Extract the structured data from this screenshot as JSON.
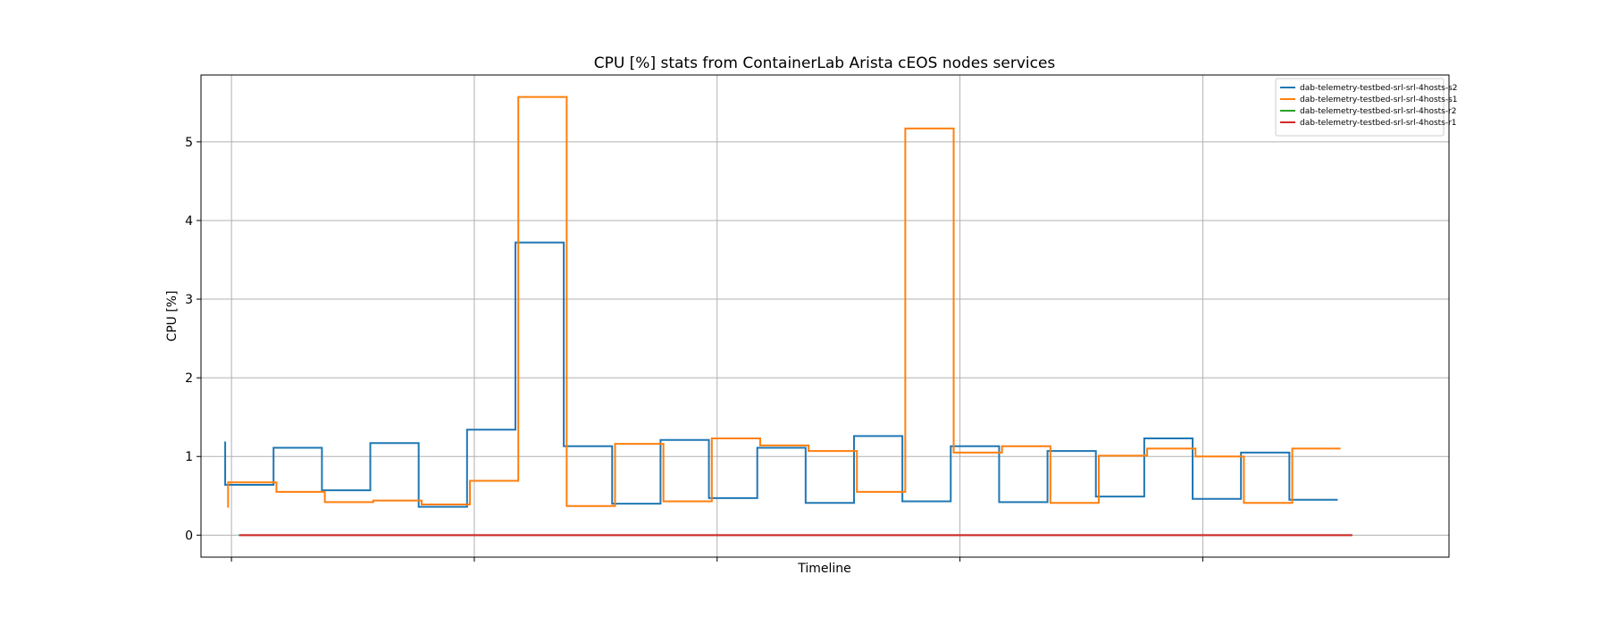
{
  "chart_data": {
    "type": "line",
    "title": "CPU [%] stats from ContainerLab Arista cEOS nodes services",
    "xlabel": "Timeline",
    "ylabel": "CPU [%]",
    "ylim": [
      -0.28,
      5.85
    ],
    "xlim": [
      -0.5,
      25.3
    ],
    "yticks": [
      0,
      1,
      2,
      3,
      4,
      5
    ],
    "xticks": [
      0.13,
      5.15,
      10.17,
      15.19,
      20.21
    ],
    "grid": true,
    "legend_position": "top-right",
    "step": "post",
    "series": [
      {
        "name": "dab-telemetry-testbed-srl-srl-4hosts-s2",
        "color": "#1f77b4",
        "points": [
          [
            0.0,
            1.19
          ],
          [
            0.0,
            0.64
          ],
          [
            1.0,
            0.64
          ],
          [
            1.0,
            1.11
          ],
          [
            2.0,
            1.11
          ],
          [
            2.0,
            0.57
          ],
          [
            3.0,
            0.57
          ],
          [
            3.0,
            1.17
          ],
          [
            4.0,
            1.17
          ],
          [
            4.0,
            0.36
          ],
          [
            5.0,
            0.36
          ],
          [
            5.0,
            1.34
          ],
          [
            6.0,
            1.34
          ],
          [
            6.0,
            3.72
          ],
          [
            7.0,
            3.72
          ],
          [
            7.0,
            1.13
          ],
          [
            8.0,
            1.13
          ],
          [
            8.0,
            0.4
          ],
          [
            9.0,
            0.4
          ],
          [
            9.0,
            1.21
          ],
          [
            10.0,
            1.21
          ],
          [
            10.0,
            0.47
          ],
          [
            11.0,
            0.47
          ],
          [
            11.0,
            1.11
          ],
          [
            12.0,
            1.11
          ],
          [
            12.0,
            0.41
          ],
          [
            13.0,
            0.41
          ],
          [
            13.0,
            1.26
          ],
          [
            14.0,
            1.26
          ],
          [
            14.0,
            0.43
          ],
          [
            15.0,
            0.43
          ],
          [
            15.0,
            1.13
          ],
          [
            16.0,
            1.13
          ],
          [
            16.0,
            0.42
          ],
          [
            17.0,
            0.42
          ],
          [
            17.0,
            1.07
          ],
          [
            18.0,
            1.07
          ],
          [
            18.0,
            0.49
          ],
          [
            19.0,
            0.49
          ],
          [
            19.0,
            1.23
          ],
          [
            20.0,
            1.23
          ],
          [
            20.0,
            0.46
          ],
          [
            21.0,
            0.46
          ],
          [
            21.0,
            1.05
          ],
          [
            22.0,
            1.05
          ],
          [
            22.0,
            0.45
          ],
          [
            23.0,
            0.45
          ]
        ]
      },
      {
        "name": "dab-telemetry-testbed-srl-srl-4hosts-s1",
        "color": "#ff7f0e",
        "points": [
          [
            0.06,
            0.35
          ],
          [
            0.06,
            0.67
          ],
          [
            1.06,
            0.67
          ],
          [
            1.06,
            0.55
          ],
          [
            2.06,
            0.55
          ],
          [
            2.06,
            0.42
          ],
          [
            3.06,
            0.42
          ],
          [
            3.06,
            0.44
          ],
          [
            4.06,
            0.44
          ],
          [
            4.06,
            0.39
          ],
          [
            5.06,
            0.39
          ],
          [
            5.06,
            0.69
          ],
          [
            6.06,
            0.69
          ],
          [
            6.06,
            5.57
          ],
          [
            7.06,
            5.57
          ],
          [
            7.06,
            0.37
          ],
          [
            8.06,
            0.37
          ],
          [
            8.06,
            1.16
          ],
          [
            9.06,
            1.16
          ],
          [
            9.06,
            0.43
          ],
          [
            10.06,
            0.43
          ],
          [
            10.06,
            1.23
          ],
          [
            11.06,
            1.23
          ],
          [
            11.06,
            1.14
          ],
          [
            12.06,
            1.14
          ],
          [
            12.06,
            1.07
          ],
          [
            13.06,
            1.07
          ],
          [
            13.06,
            0.55
          ],
          [
            14.06,
            0.55
          ],
          [
            14.06,
            5.17
          ],
          [
            15.06,
            5.17
          ],
          [
            15.06,
            1.05
          ],
          [
            16.06,
            1.05
          ],
          [
            16.06,
            1.13
          ],
          [
            17.06,
            1.13
          ],
          [
            17.06,
            0.41
          ],
          [
            18.06,
            0.41
          ],
          [
            18.06,
            1.01
          ],
          [
            19.06,
            1.01
          ],
          [
            19.06,
            1.1
          ],
          [
            20.06,
            1.1
          ],
          [
            20.06,
            1.0
          ],
          [
            21.06,
            1.0
          ],
          [
            21.06,
            0.41
          ],
          [
            22.06,
            0.41
          ],
          [
            22.06,
            1.1
          ],
          [
            23.06,
            1.1
          ]
        ]
      },
      {
        "name": "dab-telemetry-testbed-srl-srl-4hosts-r2",
        "color": "#2ca02c",
        "points": [
          [
            0.28,
            0.0
          ],
          [
            23.3,
            0.0
          ]
        ]
      },
      {
        "name": "dab-telemetry-testbed-srl-srl-4hosts-r1",
        "color": "#d62728",
        "points": [
          [
            0.3,
            0.0
          ],
          [
            23.3,
            0.0
          ]
        ]
      }
    ]
  }
}
